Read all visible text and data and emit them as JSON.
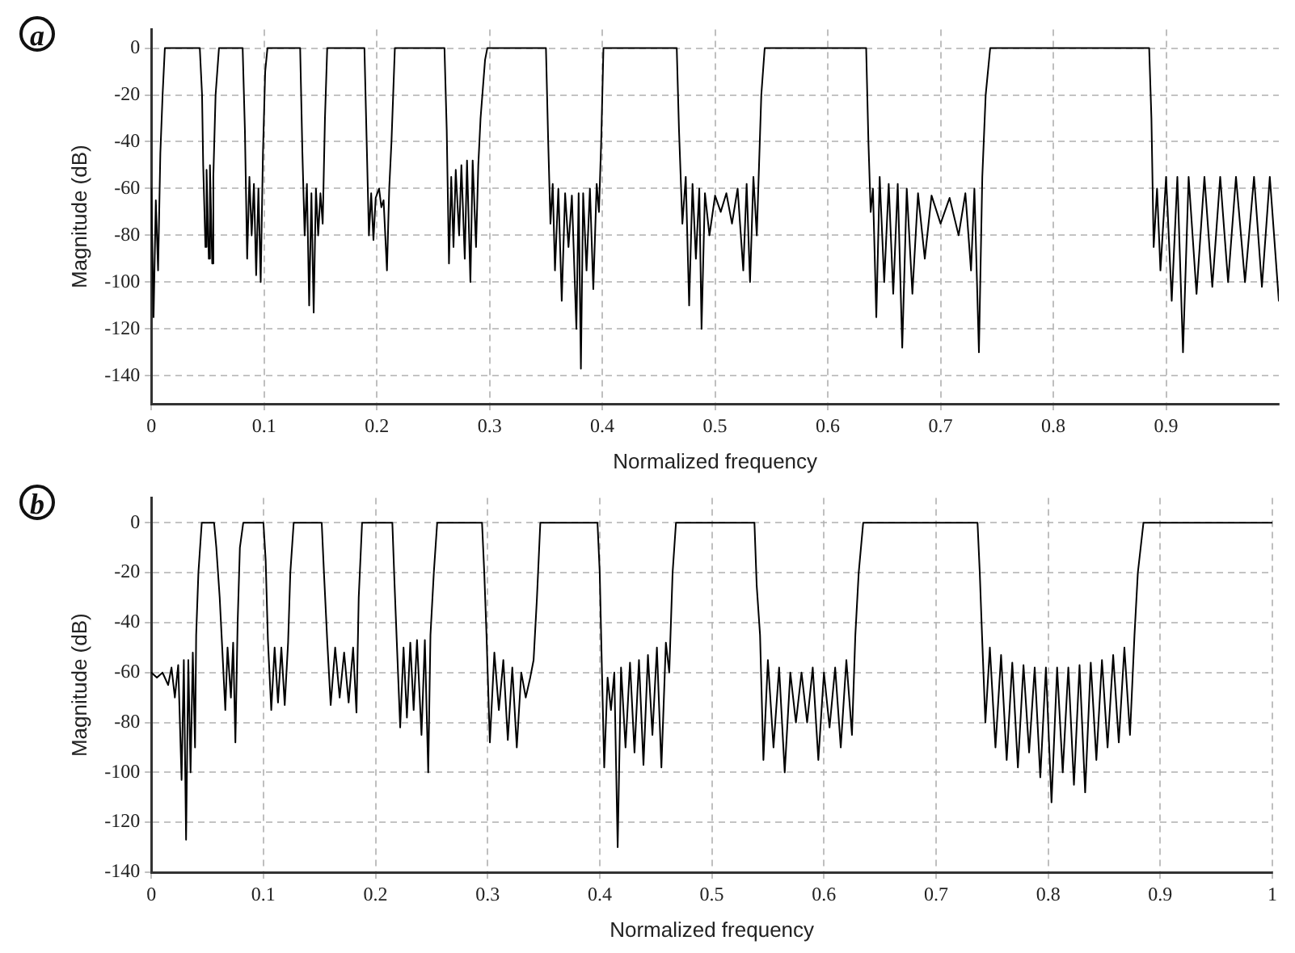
{
  "chart_data": [
    {
      "type": "line",
      "xlabel": "Normalized frequency",
      "ylabel": "Magnitude (dB)",
      "annotations": [
        "a"
      ],
      "xlim": [
        0,
        1
      ],
      "ylim": [
        -152,
        8
      ],
      "xticks": [
        0,
        0.1,
        0.2,
        0.3,
        0.4,
        0.5,
        0.6,
        0.7,
        0.8,
        0.9
      ],
      "yticks": [
        0,
        -20,
        -40,
        -60,
        -80,
        -100,
        -120,
        -140
      ],
      "grid": true,
      "x": [
        0,
        0.002,
        0.004,
        0.006,
        0.008,
        0.01,
        0.012,
        0.043,
        0.045,
        0.046,
        0.048,
        0.049,
        0.051,
        0.052,
        0.054,
        0.055,
        0.057,
        0.06,
        0.081,
        0.083,
        0.085,
        0.087,
        0.089,
        0.091,
        0.093,
        0.095,
        0.097,
        0.099,
        0.101,
        0.103,
        0.132,
        0.134,
        0.136,
        0.138,
        0.14,
        0.142,
        0.144,
        0.146,
        0.148,
        0.15,
        0.152,
        0.154,
        0.156,
        0.189,
        0.191,
        0.193,
        0.195,
        0.197,
        0.199,
        0.202,
        0.204,
        0.206,
        0.209,
        0.211,
        0.213,
        0.216,
        0.26,
        0.262,
        0.264,
        0.266,
        0.268,
        0.27,
        0.273,
        0.275,
        0.278,
        0.28,
        0.283,
        0.285,
        0.288,
        0.29,
        0.292,
        0.296,
        0.298,
        0.35,
        0.352,
        0.354,
        0.356,
        0.358,
        0.361,
        0.364,
        0.367,
        0.37,
        0.373,
        0.377,
        0.379,
        0.381,
        0.383,
        0.386,
        0.389,
        0.392,
        0.395,
        0.397,
        0.399,
        0.401,
        0.466,
        0.468,
        0.471,
        0.474,
        0.477,
        0.48,
        0.483,
        0.486,
        0.488,
        0.491,
        0.495,
        0.5,
        0.505,
        0.51,
        0.515,
        0.52,
        0.525,
        0.528,
        0.531,
        0.534,
        0.537,
        0.539,
        0.541,
        0.544,
        0.634,
        0.636,
        0.638,
        0.64,
        0.643,
        0.646,
        0.65,
        0.654,
        0.658,
        0.662,
        0.666,
        0.67,
        0.675,
        0.68,
        0.686,
        0.692,
        0.7,
        0.708,
        0.716,
        0.722,
        0.727,
        0.73,
        0.734,
        0.737,
        0.74,
        0.744,
        0.885,
        0.887,
        0.889,
        0.892,
        0.895,
        0.9,
        0.905,
        0.91,
        0.915,
        0.92,
        0.927,
        0.934,
        0.941,
        0.948,
        0.955,
        0.962,
        0.97,
        0.978,
        0.985,
        0.992,
        1
      ],
      "series": [
        {
          "color": "#000000",
          "values": [
            -60,
            -115,
            -65,
            -95,
            -45,
            -20,
            0,
            0,
            -20,
            -50,
            -85,
            -52,
            -90,
            -50,
            -92,
            -55,
            -20,
            0,
            0,
            -35,
            -90,
            -55,
            -80,
            -58,
            -97,
            -60,
            -100,
            -45,
            -10,
            0,
            0,
            -45,
            -80,
            -58,
            -110,
            -62,
            -113,
            -60,
            -80,
            -62,
            -75,
            -30,
            0,
            0,
            -40,
            -80,
            -62,
            -82,
            -64,
            -60,
            -68,
            -65,
            -95,
            -60,
            -40,
            0,
            0,
            -35,
            -92,
            -55,
            -85,
            -52,
            -80,
            -50,
            -90,
            -48,
            -100,
            -48,
            -85,
            -50,
            -30,
            -5,
            0,
            0,
            -40,
            -75,
            -58,
            -95,
            -60,
            -108,
            -62,
            -85,
            -63,
            -120,
            -62,
            -137,
            -62,
            -95,
            -60,
            -103,
            -58,
            -70,
            -40,
            0,
            0,
            -35,
            -75,
            -55,
            -110,
            -58,
            -90,
            -60,
            -120,
            -62,
            -80,
            -63,
            -70,
            -62,
            -75,
            -60,
            -95,
            -58,
            -100,
            -55,
            -80,
            -50,
            -20,
            0,
            0,
            -40,
            -70,
            -60,
            -115,
            -55,
            -100,
            -58,
            -105,
            -58,
            -128,
            -60,
            -105,
            -62,
            -90,
            -63,
            -75,
            -64,
            -80,
            -62,
            -95,
            -60,
            -130,
            -55,
            -20,
            0,
            0,
            -30,
            -85,
            -60,
            -95,
            -55,
            -108,
            -55,
            -130,
            -55,
            -105,
            -55,
            -102,
            -55,
            -100,
            -55,
            -100,
            -55,
            -102,
            -55,
            -108
          ]
        }
      ]
    },
    {
      "type": "line",
      "xlabel": "Normalized frequency",
      "ylabel": "Magnitude (dB)",
      "annotations": [
        "b"
      ],
      "xlim": [
        0,
        1
      ],
      "ylim": [
        -140,
        10
      ],
      "xticks": [
        0,
        0.1,
        0.2,
        0.3,
        0.4,
        0.5,
        0.6,
        0.7,
        0.8,
        0.9,
        1
      ],
      "yticks": [
        0,
        -20,
        -40,
        -60,
        -80,
        -100,
        -120,
        -140
      ],
      "grid": true,
      "x": [
        0,
        0.005,
        0.01,
        0.015,
        0.018,
        0.021,
        0.024,
        0.027,
        0.029,
        0.031,
        0.033,
        0.035,
        0.037,
        0.039,
        0.04,
        0.042,
        0.045,
        0.056,
        0.058,
        0.061,
        0.063,
        0.066,
        0.068,
        0.071,
        0.073,
        0.075,
        0.077,
        0.079,
        0.082,
        0.1,
        0.102,
        0.104,
        0.107,
        0.11,
        0.113,
        0.116,
        0.119,
        0.122,
        0.124,
        0.127,
        0.152,
        0.154,
        0.157,
        0.16,
        0.164,
        0.168,
        0.172,
        0.176,
        0.18,
        0.183,
        0.185,
        0.188,
        0.215,
        0.217,
        0.219,
        0.222,
        0.225,
        0.228,
        0.231,
        0.234,
        0.237,
        0.241,
        0.244,
        0.247,
        0.249,
        0.252,
        0.255,
        0.295,
        0.297,
        0.299,
        0.302,
        0.306,
        0.31,
        0.314,
        0.318,
        0.322,
        0.326,
        0.33,
        0.334,
        0.338,
        0.341,
        0.344,
        0.347,
        0.398,
        0.4,
        0.402,
        0.404,
        0.407,
        0.41,
        0.413,
        0.416,
        0.419,
        0.423,
        0.427,
        0.431,
        0.435,
        0.439,
        0.443,
        0.447,
        0.451,
        0.455,
        0.459,
        0.462,
        0.465,
        0.468,
        0.538,
        0.54,
        0.543,
        0.546,
        0.55,
        0.555,
        0.56,
        0.565,
        0.57,
        0.575,
        0.58,
        0.585,
        0.59,
        0.595,
        0.6,
        0.605,
        0.61,
        0.615,
        0.62,
        0.625,
        0.628,
        0.631,
        0.635,
        0.737,
        0.739,
        0.741,
        0.744,
        0.748,
        0.753,
        0.758,
        0.763,
        0.768,
        0.773,
        0.778,
        0.783,
        0.788,
        0.793,
        0.798,
        0.803,
        0.808,
        0.813,
        0.818,
        0.823,
        0.828,
        0.833,
        0.838,
        0.843,
        0.848,
        0.853,
        0.858,
        0.863,
        0.868,
        0.873,
        0.877,
        0.88,
        0.885,
        1
      ],
      "series": [
        {
          "color": "#000000",
          "values": [
            -60,
            -62,
            -60,
            -65,
            -58,
            -70,
            -57,
            -103,
            -55,
            -127,
            -55,
            -100,
            -52,
            -90,
            -45,
            -20,
            0,
            0,
            -10,
            -30,
            -48,
            -75,
            -50,
            -70,
            -48,
            -88,
            -40,
            -10,
            0,
            0,
            -15,
            -47,
            -75,
            -50,
            -72,
            -50,
            -73,
            -48,
            -20,
            0,
            0,
            -20,
            -48,
            -73,
            -50,
            -70,
            -52,
            -72,
            -50,
            -76,
            -30,
            0,
            0,
            -25,
            -48,
            -82,
            -50,
            -78,
            -48,
            -75,
            -47,
            -85,
            -47,
            -100,
            -45,
            -20,
            0,
            0,
            -20,
            -45,
            -88,
            -52,
            -75,
            -55,
            -87,
            -58,
            -90,
            -60,
            -70,
            -62,
            -55,
            -30,
            0,
            0,
            -20,
            -60,
            -98,
            -62,
            -75,
            -60,
            -130,
            -58,
            -90,
            -56,
            -92,
            -55,
            -97,
            -53,
            -85,
            -50,
            -98,
            -48,
            -60,
            -20,
            0,
            0,
            -25,
            -45,
            -95,
            -55,
            -90,
            -58,
            -100,
            -60,
            -80,
            -60,
            -80,
            -58,
            -95,
            -60,
            -82,
            -58,
            -90,
            -55,
            -85,
            -45,
            -20,
            0,
            0,
            -20,
            -45,
            -80,
            -50,
            -90,
            -53,
            -95,
            -56,
            -98,
            -57,
            -92,
            -58,
            -102,
            -58,
            -112,
            -58,
            -100,
            -58,
            -105,
            -57,
            -108,
            -56,
            -95,
            -55,
            -90,
            -53,
            -88,
            -50,
            -85,
            -45,
            -20,
            0,
            0
          ]
        }
      ]
    }
  ]
}
